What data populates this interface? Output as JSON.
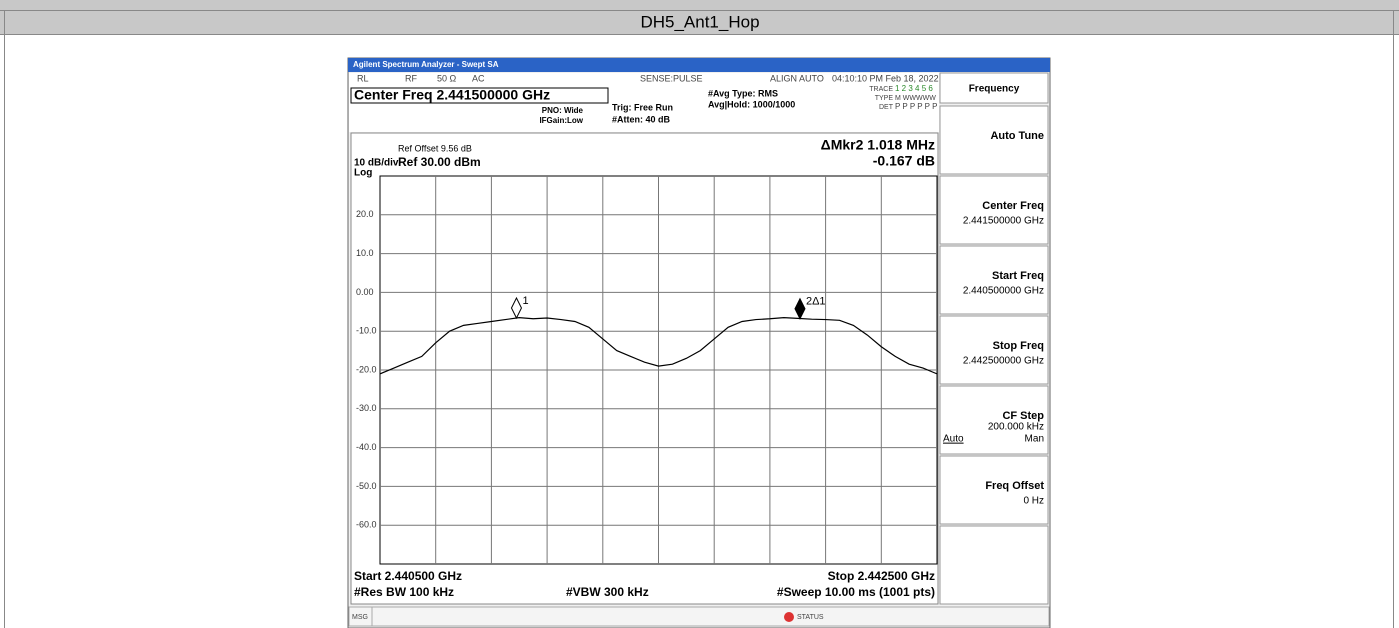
{
  "header": {
    "title": "DH5_Ant1_Hop"
  },
  "analyzer": {
    "window_title": "Agilent Spectrum Analyzer - Swept SA",
    "status_row": [
      "RL",
      "RF",
      "50 Ω",
      "AC",
      "SENSE:PULSE",
      "ALIGN AUTO",
      "04:10:10 PM Feb 18, 2022"
    ],
    "center_freq": "Center Freq 2.441500000 GHz",
    "pno": "PNO: Wide",
    "ifgain": "IFGain:Low",
    "trig": "Trig: Free Run",
    "atten": "#Atten: 40 dB",
    "avg_type": "#Avg Type: RMS",
    "avg_hold": "Avg|Hold: 1000/1000",
    "trace_label": "TRACE",
    "trace_nums": "1 2 3 4 5 6",
    "type_label": "TYPE",
    "type_val": "M WWWWW",
    "det_label": "DET",
    "det_val": "P P P P P P",
    "ref_offset": "Ref Offset 9.56 dB",
    "scale": "10 dB/div",
    "ref": "Ref 30.00 dBm",
    "log": "Log",
    "delta_marker": "ΔMkr2 1.018 MHz",
    "delta_value": "-0.167 dB",
    "start": "Start 2.440500 GHz",
    "stop": "Stop 2.442500 GHz",
    "rbw": "#Res BW 100 kHz",
    "vbw": "#VBW 300 kHz",
    "sweep": "#Sweep  10.00 ms (1001 pts)",
    "msg": "MSG",
    "status": "STATUS"
  },
  "softkeys": {
    "menu": "Frequency",
    "keys": [
      {
        "label": "Auto Tune"
      },
      {
        "label": "Center Freq",
        "value": "2.441500000 GHz"
      },
      {
        "label": "Start Freq",
        "value": "2.440500000 GHz"
      },
      {
        "label": "Stop Freq",
        "value": "2.442500000 GHz"
      },
      {
        "label": "CF Step",
        "value": "200.000 kHz",
        "auto": "Auto",
        "man": "Man"
      },
      {
        "label": "Freq Offset",
        "value": "0 Hz"
      }
    ]
  },
  "chart_data": {
    "type": "line",
    "x": [
      2.4405,
      2.44055,
      2.4406,
      2.44065,
      2.4407,
      2.44075,
      2.4408,
      2.44085,
      2.4409,
      2.44095,
      2.441,
      2.44105,
      2.4411,
      2.44115,
      2.4412,
      2.44125,
      2.4413,
      2.44135,
      2.4414,
      2.44145,
      2.4415,
      2.44155,
      2.4416,
      2.44165,
      2.4417,
      2.44175,
      2.4418,
      2.44185,
      2.4419,
      2.44195,
      2.442,
      2.44205,
      2.4421,
      2.44215,
      2.4422,
      2.44225,
      2.4423,
      2.44235,
      2.4424,
      2.44245,
      2.4425
    ],
    "series": [
      {
        "color": "#000000",
        "values": [
          -21,
          -19.5,
          -18,
          -16.5,
          -13,
          -10,
          -8.5,
          -8,
          -7.5,
          -7,
          -6.5,
          -6.8,
          -6.6,
          -7,
          -7.5,
          -9,
          -12,
          -15,
          -16.5,
          -18,
          -19,
          -18.5,
          -17,
          -15,
          -12,
          -9,
          -7.5,
          -7,
          -6.8,
          -6.5,
          -6.7,
          -6.9,
          -7,
          -7.2,
          -8.5,
          -11,
          -14,
          -16.5,
          -18.5,
          -19.5,
          -21
        ]
      }
    ],
    "xlim": [
      2.4405,
      2.4425
    ],
    "ylim": [
      -70,
      30
    ],
    "yticks": [
      {
        "value": 20,
        "label": "20.0"
      },
      {
        "value": 10,
        "label": "10.0"
      },
      {
        "value": 0,
        "label": "0.00"
      },
      {
        "value": -10,
        "label": "-10.0"
      },
      {
        "value": -20,
        "label": "-20.0"
      },
      {
        "value": -30,
        "label": "-30.0"
      },
      {
        "value": -40,
        "label": "-40.0"
      },
      {
        "value": -50,
        "label": "-50.0"
      },
      {
        "value": -60,
        "label": "-60.0"
      }
    ],
    "grid": true,
    "markers": [
      {
        "label": "1",
        "x": 2.44099,
        "y": -6.6,
        "color": "none"
      },
      {
        "label": "2Δ1",
        "x": 2.442008,
        "y": -6.8,
        "color": "#000000"
      }
    ]
  }
}
